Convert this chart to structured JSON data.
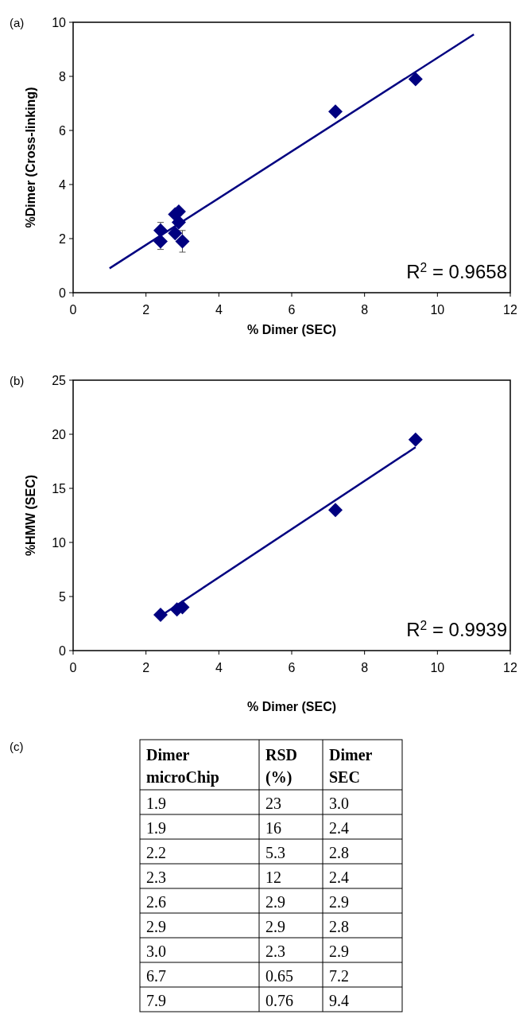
{
  "chart_data": [
    {
      "type": "scatter",
      "title": "(a)",
      "xlabel": "% Dimer (SEC)",
      "ylabel": "%Dimer (Cross-linking)",
      "xlim": [
        0,
        12
      ],
      "xticks": [
        0,
        2,
        4,
        6,
        8,
        10,
        12
      ],
      "ylim": [
        0,
        10
      ],
      "yticks": [
        0,
        2,
        4,
        6,
        8,
        10
      ],
      "grid": false,
      "marker": "diamond",
      "annotations": [
        "R$^{2}$ = 0.9658"
      ],
      "series": [
        {
          "color": "#000080",
          "x": [
            3.0,
            2.4,
            2.8,
            2.4,
            2.9,
            2.8,
            2.9,
            7.2,
            9.4
          ],
          "values": [
            1.9,
            1.9,
            2.2,
            2.3,
            2.6,
            2.9,
            3.0,
            6.7,
            7.9
          ],
          "errors": [
            0.4,
            0.3,
            null,
            0.3,
            null,
            null,
            null,
            null,
            null
          ]
        },
        {
          "type": "line",
          "color": "#000080",
          "x": [
            1,
            11
          ],
          "values": [
            0.9,
            9.55
          ],
          "marker": "none"
        }
      ]
    },
    {
      "type": "scatter",
      "title": "(b)",
      "xlabel": "% Dimer (SEC)",
      "ylabel": "%HMW (SEC)",
      "xlim": [
        0,
        12
      ],
      "xticks": [
        0,
        2,
        4,
        6,
        8,
        10,
        12
      ],
      "ylim": [
        0,
        25
      ],
      "yticks": [
        0,
        5,
        10,
        15,
        20,
        25
      ],
      "grid": false,
      "marker": "diamond",
      "annotations": [
        "R$^{2}$ = 0.9939"
      ],
      "series": [
        {
          "color": "#000080",
          "x": [
            2.4,
            2.85,
            3.0,
            7.2,
            9.4
          ],
          "values": [
            3.3,
            3.8,
            4.0,
            13.0,
            19.5
          ]
        },
        {
          "type": "line",
          "color": "#000080",
          "x": [
            2.4,
            9.4
          ],
          "values": [
            3.2,
            18.8
          ],
          "marker": "none"
        }
      ]
    },
    {
      "type": "other",
      "title": "(c)",
      "categories": [
        "Dimer microChip",
        "RSD (%)",
        "Dimer SEC"
      ],
      "cell_labels": [
        [
          "1.9",
          "23",
          "3.0"
        ],
        [
          "1.9",
          "16",
          "2.4"
        ],
        [
          "2.2",
          "5.3",
          "2.8"
        ],
        [
          "2.3",
          "12",
          "2.4"
        ],
        [
          "2.6",
          "2.9",
          "2.9"
        ],
        [
          "2.9",
          "2.9",
          "2.8"
        ],
        [
          "3.0",
          "2.3",
          "2.9"
        ],
        [
          "6.7",
          "0.65",
          "7.2"
        ],
        [
          "7.9",
          "0.76",
          "9.4"
        ]
      ]
    }
  ]
}
